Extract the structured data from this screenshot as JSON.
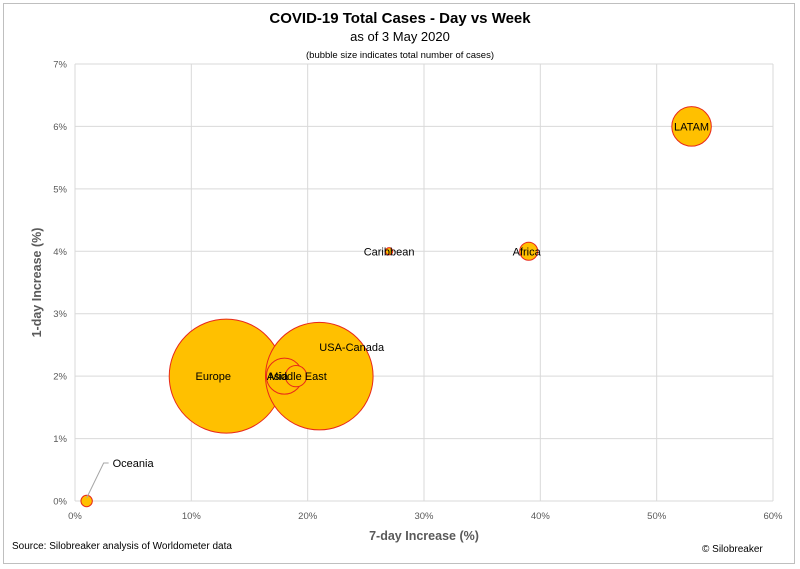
{
  "chart_data": {
    "type": "scatter",
    "title": "COVID-19 Total Cases - Day vs Week",
    "subtitle": "as of 3 May 2020",
    "note": "(bubble size indicates total number of cases)",
    "xlabel": "7-day Increase (%)",
    "ylabel": "1-day Increase (%)",
    "xlim": [
      0,
      60
    ],
    "ylim": [
      0,
      7
    ],
    "x_ticks": [
      "0%",
      "10%",
      "20%",
      "30%",
      "40%",
      "50%",
      "60%"
    ],
    "y_ticks": [
      "0%",
      "1%",
      "2%",
      "3%",
      "4%",
      "5%",
      "6%",
      "7%"
    ],
    "grid": true,
    "points": [
      {
        "label": "Oceania",
        "x": 1,
        "y": 0,
        "size": 1
      },
      {
        "label": "Europe",
        "x": 13,
        "y": 2,
        "size": 100
      },
      {
        "label": "Asia",
        "x": 18,
        "y": 2,
        "size": 10
      },
      {
        "label": "Middle East",
        "x": 19,
        "y": 2,
        "size": 3.5
      },
      {
        "label": "USA-Canada",
        "x": 21,
        "y": 2,
        "size": 89
      },
      {
        "label": "Caribbean",
        "x": 27,
        "y": 4,
        "size": 0.4
      },
      {
        "label": "Africa",
        "x": 39,
        "y": 4,
        "size": 2.5
      },
      {
        "label": "LATAM",
        "x": 53,
        "y": 6,
        "size": 12
      }
    ],
    "colors": {
      "bubble_fill": "#FFC000",
      "bubble_stroke": "#E8281A",
      "grid": "#d9d9d9"
    }
  },
  "footer": {
    "source": "Source: Silobreaker analysis of Worldometer data",
    "credit": "© Silobreaker"
  }
}
